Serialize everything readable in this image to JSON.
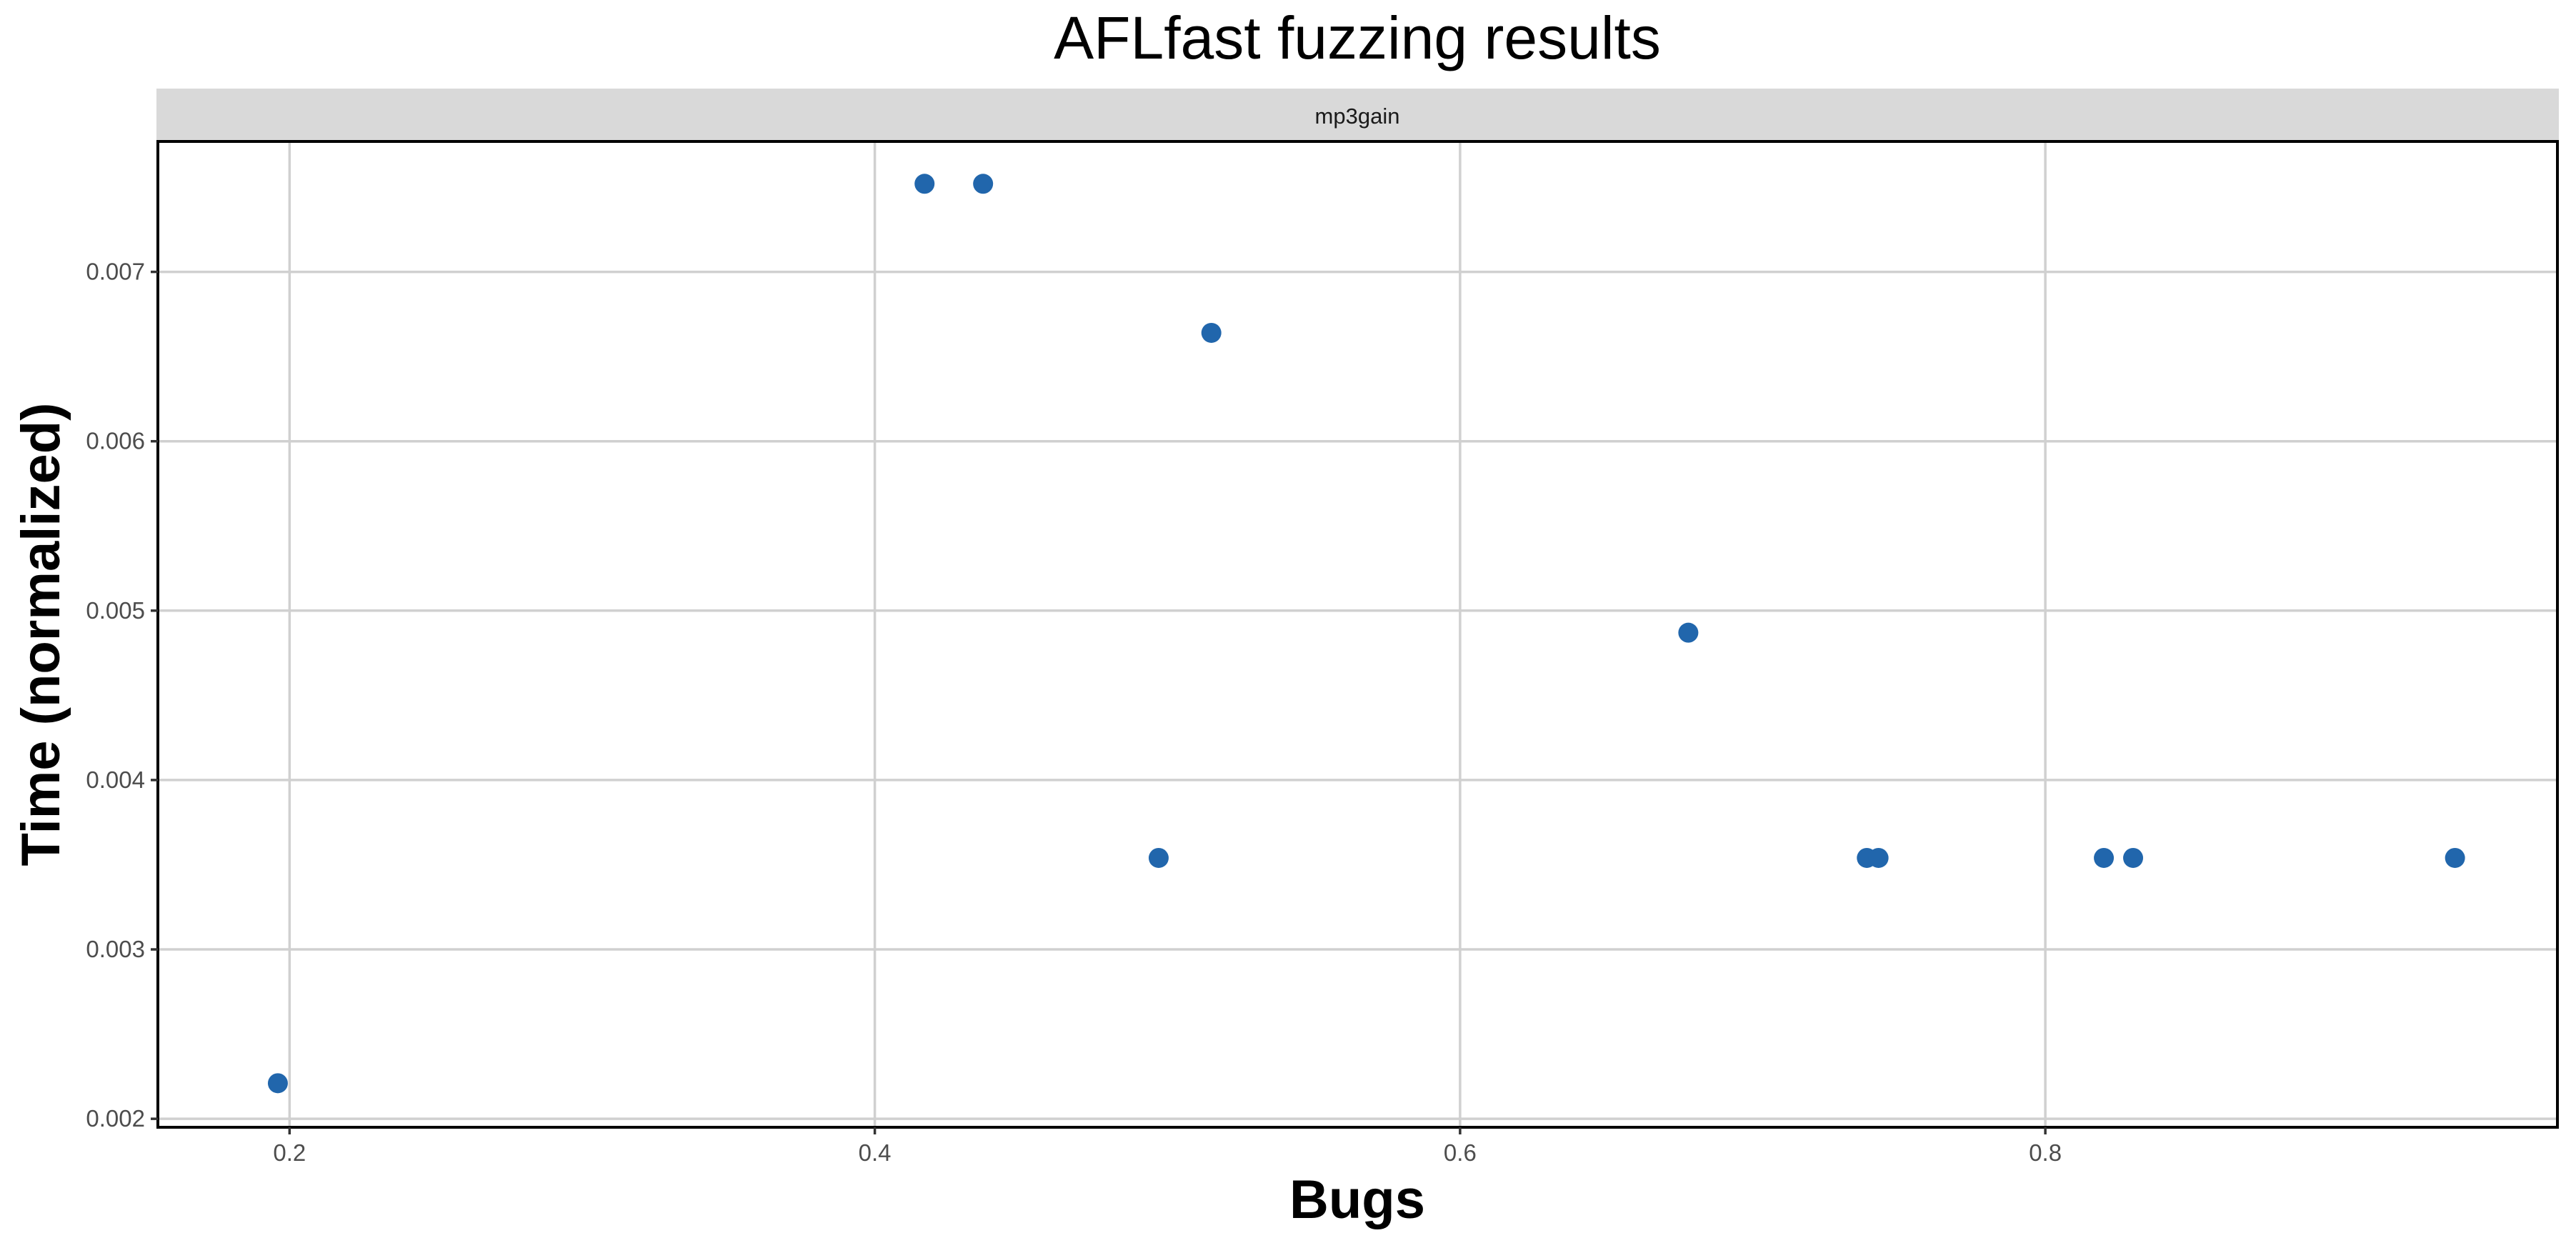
{
  "chart_data": {
    "type": "scatter",
    "title": "AFLfast fuzzing results",
    "facet_label": "mp3gain",
    "xlabel": "Bugs",
    "ylabel": "Time (normalized)",
    "xlim": [
      0.155,
      0.975
    ],
    "ylim": [
      0.00195,
      0.00777
    ],
    "x_ticks": [
      0.2,
      0.4,
      0.6,
      0.8
    ],
    "x_tick_labels": [
      "0.2",
      "0.4",
      "0.6",
      "0.8"
    ],
    "y_ticks": [
      0.002,
      0.003,
      0.004,
      0.005,
      0.006,
      0.007
    ],
    "y_tick_labels": [
      "0.002",
      "0.003",
      "0.004",
      "0.005",
      "0.006",
      "0.007"
    ],
    "grid": true,
    "legend": "none",
    "colors": {
      "point": "#2166ac",
      "strip": "#d9d9d9",
      "grid": "#d0d0d0"
    },
    "points": [
      {
        "x": 0.196,
        "y": 0.00221
      },
      {
        "x": 0.417,
        "y": 0.00752
      },
      {
        "x": 0.437,
        "y": 0.00752
      },
      {
        "x": 0.497,
        "y": 0.00354
      },
      {
        "x": 0.515,
        "y": 0.00664
      },
      {
        "x": 0.678,
        "y": 0.00487
      },
      {
        "x": 0.739,
        "y": 0.00354
      },
      {
        "x": 0.743,
        "y": 0.00354
      },
      {
        "x": 0.82,
        "y": 0.00354
      },
      {
        "x": 0.83,
        "y": 0.00354
      },
      {
        "x": 0.94,
        "y": 0.00354
      }
    ]
  }
}
